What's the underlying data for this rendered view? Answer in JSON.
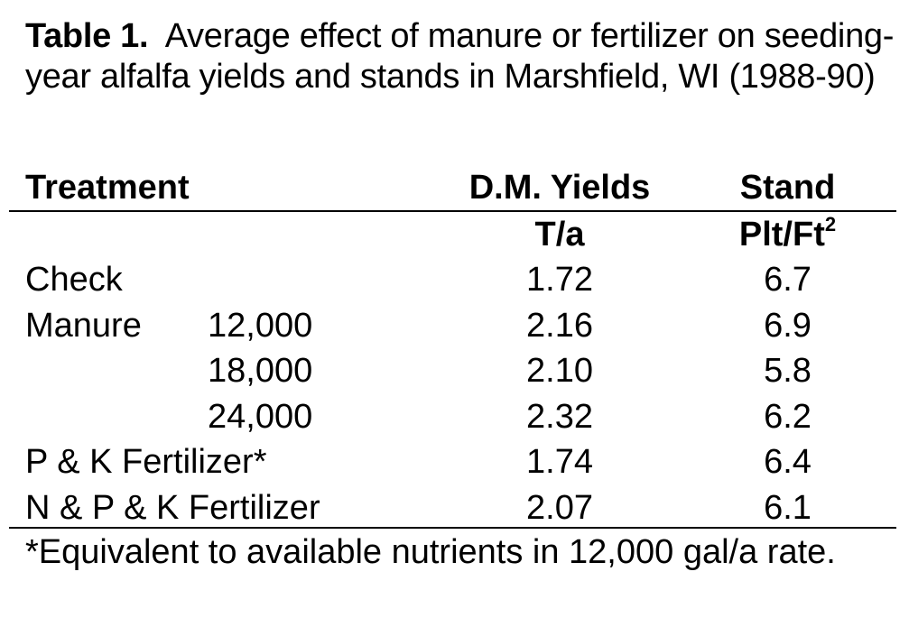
{
  "caption": {
    "label": "Table 1.",
    "text": "Average effect of manure or fertilizer on seeding-year alfalfa yields and stands in Marshfield, WI (1988-90)"
  },
  "headers": {
    "treatment": "Treatment",
    "yields": "D.M. Yields",
    "stand": "Stand"
  },
  "units": {
    "yields": "T/a",
    "stand": "Plt/Ft",
    "stand_superscript": "2"
  },
  "rows": [
    {
      "treatment": "Check",
      "rate": "",
      "yield": "1.72",
      "stand": "6.7"
    },
    {
      "treatment": "Manure",
      "rate": "12,000",
      "yield": "2.16",
      "stand": "6.9"
    },
    {
      "treatment": "",
      "rate": "18,000",
      "yield": "2.10",
      "stand": "5.8"
    },
    {
      "treatment": "",
      "rate": "24,000",
      "yield": "2.32",
      "stand": "6.2"
    },
    {
      "treatment": "P & K Fertilizer*",
      "rate": "",
      "yield": "1.74",
      "stand": "6.4"
    },
    {
      "treatment": "N & P & K Fertilizer",
      "rate": "",
      "yield": "2.07",
      "stand": "6.1"
    }
  ],
  "footnote": "*Equivalent to available nutrients in 12,000 gal/a rate."
}
